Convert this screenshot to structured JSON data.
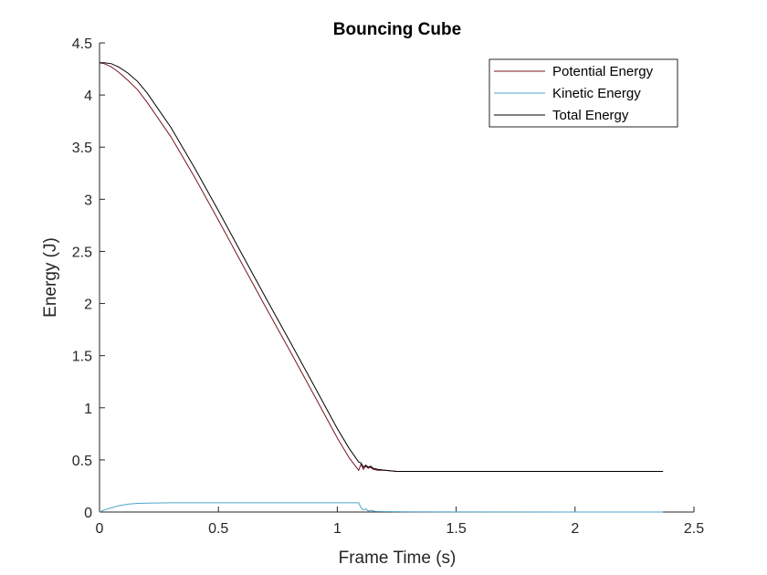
{
  "chart_data": {
    "type": "line",
    "title": "Bouncing Cube",
    "xlabel": "Frame Time (s)",
    "ylabel": "Energy (J)",
    "xlim": [
      0,
      2.5
    ],
    "ylim": [
      0,
      4.5
    ],
    "xticks": [
      0,
      0.5,
      1,
      1.5,
      2,
      2.5
    ],
    "xtick_labels": [
      "0",
      "0.5",
      "1",
      "1.5",
      "2",
      "2.5"
    ],
    "yticks": [
      0,
      0.5,
      1,
      1.5,
      2,
      2.5,
      3,
      3.5,
      4,
      4.5
    ],
    "ytick_labels": [
      "0",
      "0.5",
      "1",
      "1.5",
      "2",
      "2.5",
      "3",
      "3.5",
      "4",
      "4.5"
    ],
    "grid": false,
    "legend_position": "top-right",
    "series": [
      {
        "name": "Potential Energy",
        "color": "#7a1420",
        "x": [
          0,
          0.02,
          0.05,
          0.08,
          0.12,
          0.16,
          0.2,
          0.3,
          0.4,
          0.5,
          0.6,
          0.7,
          0.8,
          0.9,
          1.0,
          1.05,
          1.09,
          1.1,
          1.11,
          1.12,
          1.13,
          1.14,
          1.15,
          1.17,
          1.2,
          1.25,
          1.3,
          1.5,
          2.0,
          2.37
        ],
        "y": [
          4.31,
          4.3,
          4.27,
          4.22,
          4.14,
          4.05,
          3.93,
          3.6,
          3.21,
          2.8,
          2.38,
          1.96,
          1.55,
          1.13,
          0.71,
          0.52,
          0.4,
          0.46,
          0.41,
          0.44,
          0.42,
          0.43,
          0.41,
          0.4,
          0.4,
          0.39,
          0.39,
          0.39,
          0.39,
          0.39
        ]
      },
      {
        "name": "Kinetic Energy",
        "color": "#4fa3c7",
        "x": [
          0,
          0.02,
          0.05,
          0.08,
          0.12,
          0.16,
          0.2,
          0.3,
          0.5,
          0.8,
          1.0,
          1.09,
          1.1,
          1.11,
          1.12,
          1.13,
          1.14,
          1.16,
          1.2,
          1.3,
          1.5,
          2.0,
          2.37
        ],
        "y": [
          0,
          0.02,
          0.04,
          0.06,
          0.075,
          0.083,
          0.086,
          0.088,
          0.088,
          0.088,
          0.088,
          0.088,
          0.04,
          0.02,
          0.03,
          0.01,
          0.015,
          0.006,
          0.004,
          0.002,
          0.001,
          0,
          0
        ]
      },
      {
        "name": "Total Energy",
        "color": "#000000",
        "x": [
          0,
          0.02,
          0.05,
          0.08,
          0.12,
          0.16,
          0.2,
          0.3,
          0.4,
          0.5,
          0.6,
          0.7,
          0.8,
          0.9,
          1.0,
          1.05,
          1.09,
          1.1,
          1.11,
          1.12,
          1.13,
          1.14,
          1.15,
          1.17,
          1.2,
          1.25,
          1.3,
          1.5,
          2.0,
          2.37
        ],
        "y": [
          4.31,
          4.31,
          4.3,
          4.27,
          4.21,
          4.13,
          4.02,
          3.69,
          3.3,
          2.89,
          2.47,
          2.05,
          1.64,
          1.22,
          0.8,
          0.61,
          0.48,
          0.47,
          0.43,
          0.45,
          0.43,
          0.44,
          0.42,
          0.41,
          0.4,
          0.39,
          0.39,
          0.39,
          0.39,
          0.39
        ]
      }
    ]
  }
}
